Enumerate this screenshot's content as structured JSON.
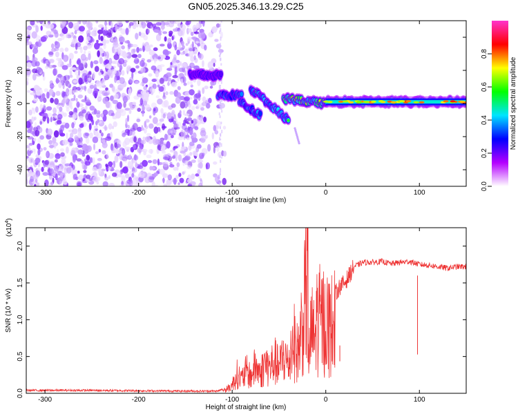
{
  "title": "GN05.2025.346.13.29.C25",
  "chart_data": [
    {
      "type": "heatmap",
      "xlabel": "Height of straight line (km)",
      "ylabel": "Frequency (Hz)",
      "xlim": [
        -320,
        150
      ],
      "ylim": [
        -50,
        50
      ],
      "x_ticks": [
        -300,
        -200,
        -100,
        0,
        100
      ],
      "y_ticks": [
        -40,
        -20,
        0,
        20,
        40
      ],
      "colorbar": {
        "label": "Normalized spectral amplitude",
        "range": [
          0,
          1
        ],
        "ticks": [
          0.0,
          0.2,
          0.4,
          0.6,
          0.8
        ],
        "colors": [
          "#ffffff",
          "#b400ff",
          "#0000ff",
          "#00e5ff",
          "#00ff00",
          "#ffff00",
          "#ff0000",
          "#ff33cc"
        ]
      },
      "noise_region": {
        "x_range": [
          -320,
          -115
        ],
        "level_range": [
          0.0,
          0.25
        ]
      },
      "ridges": [
        {
          "x": [
            -145,
            -112
          ],
          "y": [
            17,
            17
          ],
          "peak_level": 0.35
        },
        {
          "x": [
            -115,
            -90
          ],
          "y": [
            5,
            5
          ],
          "peak_level": 0.5
        },
        {
          "x": [
            -92,
            -70
          ],
          "y": [
            1,
            -7
          ],
          "peak_level": 0.55
        },
        {
          "x": [
            -80,
            -40
          ],
          "y": [
            9,
            -10
          ],
          "peak_level": 0.6
        },
        {
          "x": [
            -45,
            0
          ],
          "y": [
            3,
            0
          ],
          "peak_level": 0.75
        },
        {
          "x": [
            0,
            150
          ],
          "y": [
            1,
            1
          ],
          "peak_level": 0.65
        }
      ]
    },
    {
      "type": "line",
      "xlabel": "Height of straight line (km)",
      "ylabel": "SNR (10 * v/v)",
      "y_scale_label": "(x10",
      "y_scale_exponent": "4",
      "y_scale_suffix": ")",
      "xlim": [
        -320,
        150
      ],
      "ylim": [
        0,
        2.25
      ],
      "x_ticks": [
        -300,
        -200,
        -100,
        0,
        100
      ],
      "y_ticks": [
        "0.0",
        "0.5",
        "1.0",
        "1.5",
        "2.0"
      ],
      "series": [
        {
          "color": "#ee3333",
          "x": [
            -320,
            -250,
            -200,
            -150,
            -115,
            -105,
            -100,
            -95,
            -90,
            -85,
            -80,
            -75,
            -70,
            -65,
            -60,
            -55,
            -50,
            -45,
            -40,
            -35,
            -30,
            -25,
            -22,
            -20,
            -18,
            -15,
            -12,
            -10,
            -5,
            0,
            5,
            10,
            15,
            20,
            25,
            30,
            40,
            50,
            60,
            70,
            80,
            90,
            100,
            110,
            120,
            130,
            140,
            150
          ],
          "y": [
            0.04,
            0.04,
            0.035,
            0.03,
            0.03,
            0.08,
            0.15,
            0.35,
            0.25,
            0.4,
            0.3,
            0.5,
            0.35,
            0.55,
            0.45,
            0.6,
            0.45,
            0.7,
            0.5,
            1.0,
            0.7,
            1.3,
            1.6,
            2.2,
            0.6,
            1.2,
            0.9,
            1.35,
            1.3,
            1.3,
            1.2,
            1.35,
            1.45,
            1.5,
            1.6,
            1.72,
            1.78,
            1.78,
            1.79,
            1.76,
            1.78,
            1.79,
            1.75,
            1.74,
            1.72,
            1.7,
            1.72,
            1.72
          ],
          "spikes": [
            {
              "x": -19,
              "y": 2.25
            },
            {
              "x": 98,
              "y": 1.6
            },
            {
              "x": 15,
              "y": 0.65
            }
          ]
        }
      ]
    }
  ]
}
